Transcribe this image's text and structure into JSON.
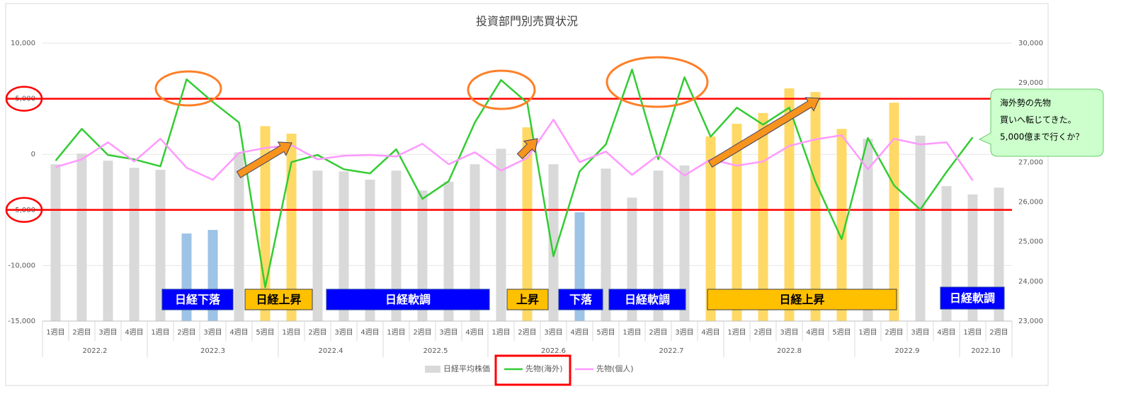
{
  "chart_data": {
    "type": "combo",
    "title": "投資部門別売買状況",
    "categories": [
      "1週目",
      "2週目",
      "3週目",
      "4週目",
      "1週目",
      "2週目",
      "3週目",
      "4週目",
      "5週目",
      "1週目",
      "2週目",
      "3週目",
      "4週目",
      "1週目",
      "2週目",
      "3週目",
      "4週目",
      "1週目",
      "2週目",
      "3週目",
      "4週目",
      "5週目",
      "1週目",
      "2週目",
      "3週目",
      "4週目",
      "1週目",
      "2週目",
      "3週目",
      "4週目",
      "5週目",
      "1週目",
      "2週目",
      "3週目",
      "4週目",
      "1週目",
      "2週目"
    ],
    "groups": [
      {
        "label": "2022.2",
        "count": 4
      },
      {
        "label": "2022.3",
        "count": 5
      },
      {
        "label": "2022.4",
        "count": 4
      },
      {
        "label": "2022.5",
        "count": 4
      },
      {
        "label": "2022.6",
        "count": 5
      },
      {
        "label": "2022.7",
        "count": 4
      },
      {
        "label": "2022.8",
        "count": 5
      },
      {
        "label": "2022.9",
        "count": 4
      },
      {
        "label": "2022.10",
        "count": 2
      }
    ],
    "series": [
      {
        "name": "日経平均株価",
        "type": "bar",
        "axis": "y2",
        "color": "#d9d9d9",
        "values": [
          26950,
          27220,
          27040,
          26860,
          26810,
          25205,
          25295,
          27250,
          27910,
          27720,
          26790,
          26770,
          26560,
          26790,
          26290,
          26510,
          26950,
          27340,
          27880,
          26950,
          25740,
          26840,
          26110,
          26790,
          26920,
          27650,
          27970,
          28240,
          28860,
          28770,
          27840,
          27590,
          28500,
          27670,
          26400,
          26190,
          26360
        ],
        "colors": [
          "#d9d9d9",
          "#d9d9d9",
          "#d9d9d9",
          "#d9d9d9",
          "#d9d9d9",
          "#9dc3e6",
          "#9dc3e6",
          "#d9d9d9",
          "#ffd966",
          "#ffd966",
          "#d9d9d9",
          "#d9d9d9",
          "#d9d9d9",
          "#d9d9d9",
          "#d9d9d9",
          "#d9d9d9",
          "#d9d9d9",
          "#d9d9d9",
          "#ffd966",
          "#d9d9d9",
          "#9dc3e6",
          "#d9d9d9",
          "#d9d9d9",
          "#d9d9d9",
          "#d9d9d9",
          "#ffd966",
          "#ffd966",
          "#ffd966",
          "#ffd966",
          "#ffd966",
          "#ffd966",
          "#d9d9d9",
          "#ffd966",
          "#d9d9d9",
          "#d9d9d9",
          "#d9d9d9",
          "#d9d9d9"
        ]
      },
      {
        "name": "先物(海外)",
        "type": "line",
        "color": "#33cc33",
        "values": [
          -570,
          2290,
          -60,
          -450,
          -1080,
          6740,
          4710,
          2860,
          -11960,
          -700,
          -60,
          -1340,
          -1720,
          450,
          -4010,
          -2420,
          2860,
          6680,
          4640,
          -9160,
          -1530,
          890,
          7630,
          -450,
          6930,
          1590,
          4200,
          2670,
          4200,
          -2480,
          -7630,
          1460,
          -2800,
          -4960,
          -1590,
          1530,
          null
        ]
      },
      {
        "name": "先物(個人)",
        "type": "line",
        "color": "#ff99ff",
        "values": [
          -1150,
          -450,
          1080,
          -640,
          1400,
          -1210,
          -2290,
          130,
          570,
          830,
          -450,
          -130,
          -60,
          -190,
          950,
          -890,
          190,
          -1460,
          -320,
          3120,
          -700,
          250,
          -1850,
          -60,
          -1910,
          -450,
          -1020,
          -640,
          760,
          1340,
          1720,
          -1340,
          1400,
          890,
          1080,
          -2350,
          null
        ]
      }
    ],
    "ylim": [
      -15000,
      10000
    ],
    "yticks": [
      {
        "value": -15000,
        "label": "-15,000"
      },
      {
        "value": -10000,
        "label": "-10,000"
      },
      {
        "value": -5000,
        "label": "-5,000"
      },
      0,
      {
        "value": 5000,
        "label": "5,000"
      },
      {
        "value": 10000,
        "label": "10,000"
      }
    ],
    "y2lim": [
      23000,
      30000
    ],
    "y2ticks": [
      {
        "value": 23000,
        "label": "23,000"
      },
      {
        "value": 24000,
        "label": "24,000"
      },
      {
        "value": 25000,
        "label": "25,000"
      },
      {
        "value": 26000,
        "label": "26,000"
      },
      {
        "value": 27000,
        "label": "27,000"
      },
      {
        "value": 28000,
        "label": "28,000"
      },
      {
        "value": 29000,
        "label": "29,000"
      },
      {
        "value": 30000,
        "label": "30,000"
      }
    ],
    "ref_lines": [
      {
        "value": 5000,
        "color": "#ff0000"
      },
      {
        "value": -5000,
        "color": "#ff0000"
      }
    ],
    "legend": "bottom",
    "annotations": [
      {
        "text": "日経下落",
        "color": "#0000ff"
      },
      {
        "text": "日経上昇",
        "color": "#ffc000"
      },
      {
        "text": "日経軟調",
        "color": "#0000ff"
      },
      {
        "text": "上昇",
        "color": "#ffc000"
      },
      {
        "text": "下落",
        "color": "#0000ff"
      },
      {
        "text": "日経軟調",
        "color": "#0000ff"
      },
      {
        "text": "日経上昇",
        "color": "#ffc000"
      },
      {
        "text": "日経軟調",
        "color": "#0000ff"
      }
    ],
    "callout": [
      "海外勢の先物",
      "買いへ転じてきた。",
      "5,000億まで行くか？"
    ]
  }
}
